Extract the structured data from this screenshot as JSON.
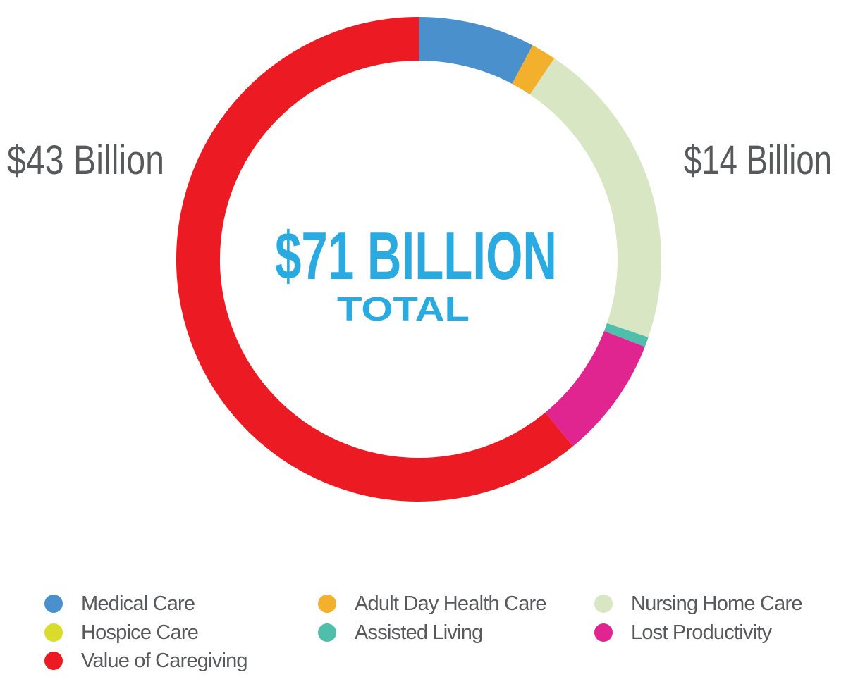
{
  "chart_data": {
    "type": "donut",
    "title": "$71 BILLION",
    "subtitle": "TOTAL",
    "unit": "billion USD",
    "center_text_color": "#29ABE2",
    "label_color": "#58595B",
    "background_color": "#FFFFFF",
    "segments": [
      {
        "label": "Medical Care",
        "value_billion": 5.5,
        "start_deg": 0,
        "end_deg": 28,
        "color": "#4990CC"
      },
      {
        "label": "Adult Day Health Care",
        "value_billion": 1.2,
        "start_deg": 28,
        "end_deg": 34,
        "color": "#F2B02C"
      },
      {
        "label": "Nursing Home Care",
        "value_billion": 14,
        "start_deg": 34,
        "end_deg": 108.8,
        "color": "#D8E6C4"
      },
      {
        "label": "Assisted Living",
        "value_billion": 0.5,
        "start_deg": 108.8,
        "end_deg": 111.2,
        "color": "#4FBFAC"
      },
      {
        "label": "Lost Productivity",
        "value_billion": 5.8,
        "start_deg": 111.2,
        "end_deg": 140.5,
        "color": "#E02590"
      },
      {
        "label": "Value of Caregiving",
        "value_billion": 43,
        "start_deg": 140.5,
        "end_deg": 360,
        "color": "#EC1B23"
      },
      {
        "label": "Hospice Care",
        "value_billion": 0,
        "start_deg": 360,
        "end_deg": 360,
        "color": "#D9DC2B"
      }
    ],
    "callouts": {
      "left": {
        "text": "$43 Billion",
        "refers_to": "Value of Caregiving"
      },
      "right": {
        "text": "$14 Billion",
        "refers_to": "Nursing Home Care"
      }
    },
    "legend_position": "bottom"
  }
}
